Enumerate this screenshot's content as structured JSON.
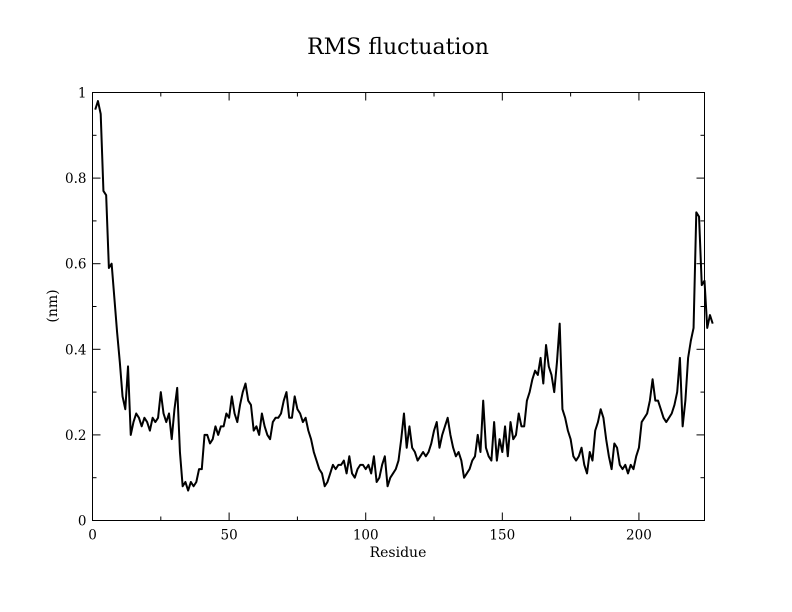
{
  "chart_data": {
    "type": "line",
    "title": "RMS fluctuation",
    "xlabel": "Residue",
    "ylabel": "(nm)",
    "xlim": [
      0,
      224
    ],
    "ylim": [
      0,
      1
    ],
    "xticks": [
      0,
      50,
      100,
      150,
      200
    ],
    "xtick_labels": [
      "0",
      "50",
      "100",
      "150",
      "200"
    ],
    "yticks": [
      0,
      0.2,
      0.4,
      0.6,
      0.8,
      1
    ],
    "ytick_labels": [
      "0",
      "0.2",
      "0.4",
      "0.6",
      "0.8",
      "1"
    ],
    "x_minor_step": 25,
    "y_minor_step": 0.1,
    "grid": false,
    "line_color": "#000000",
    "series": [
      {
        "x_start": 1,
        "x_step": 1,
        "values": [
          0.96,
          0.98,
          0.95,
          0.77,
          0.76,
          0.59,
          0.6,
          0.52,
          0.44,
          0.37,
          0.29,
          0.26,
          0.36,
          0.2,
          0.23,
          0.25,
          0.24,
          0.22,
          0.24,
          0.23,
          0.21,
          0.24,
          0.23,
          0.24,
          0.3,
          0.25,
          0.23,
          0.25,
          0.19,
          0.26,
          0.31,
          0.16,
          0.08,
          0.09,
          0.07,
          0.09,
          0.08,
          0.09,
          0.12,
          0.12,
          0.2,
          0.2,
          0.18,
          0.19,
          0.22,
          0.2,
          0.22,
          0.22,
          0.25,
          0.24,
          0.29,
          0.25,
          0.23,
          0.27,
          0.3,
          0.32,
          0.28,
          0.27,
          0.21,
          0.22,
          0.2,
          0.25,
          0.22,
          0.2,
          0.19,
          0.23,
          0.24,
          0.24,
          0.25,
          0.28,
          0.3,
          0.24,
          0.24,
          0.29,
          0.26,
          0.25,
          0.23,
          0.24,
          0.21,
          0.19,
          0.16,
          0.14,
          0.12,
          0.11,
          0.08,
          0.09,
          0.11,
          0.13,
          0.12,
          0.13,
          0.13,
          0.14,
          0.11,
          0.15,
          0.11,
          0.1,
          0.12,
          0.13,
          0.13,
          0.12,
          0.13,
          0.11,
          0.15,
          0.09,
          0.1,
          0.13,
          0.15,
          0.08,
          0.1,
          0.11,
          0.12,
          0.14,
          0.19,
          0.25,
          0.17,
          0.22,
          0.17,
          0.16,
          0.14,
          0.15,
          0.16,
          0.15,
          0.16,
          0.18,
          0.21,
          0.23,
          0.17,
          0.2,
          0.22,
          0.24,
          0.2,
          0.17,
          0.15,
          0.16,
          0.14,
          0.1,
          0.11,
          0.12,
          0.14,
          0.15,
          0.2,
          0.16,
          0.28,
          0.17,
          0.15,
          0.14,
          0.23,
          0.14,
          0.19,
          0.16,
          0.22,
          0.15,
          0.23,
          0.19,
          0.2,
          0.25,
          0.22,
          0.22,
          0.28,
          0.3,
          0.33,
          0.35,
          0.34,
          0.38,
          0.32,
          0.41,
          0.36,
          0.34,
          0.3,
          0.37,
          0.46,
          0.26,
          0.24,
          0.21,
          0.19,
          0.15,
          0.14,
          0.15,
          0.17,
          0.13,
          0.11,
          0.16,
          0.14,
          0.21,
          0.23,
          0.26,
          0.24,
          0.19,
          0.15,
          0.12,
          0.18,
          0.17,
          0.13,
          0.12,
          0.13,
          0.11,
          0.13,
          0.12,
          0.15,
          0.17,
          0.23,
          0.24,
          0.25,
          0.28,
          0.33,
          0.28,
          0.28,
          0.26,
          0.24,
          0.23,
          0.24,
          0.25,
          0.27,
          0.3,
          0.38,
          0.22,
          0.28,
          0.38,
          0.42,
          0.45,
          0.72,
          0.71,
          0.55,
          0.56,
          0.45,
          0.48,
          0.46
        ]
      }
    ]
  }
}
